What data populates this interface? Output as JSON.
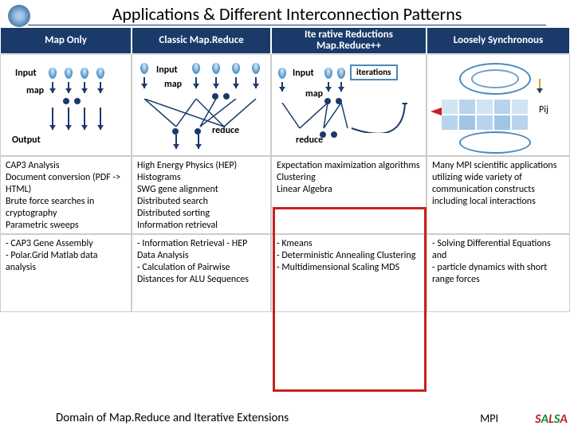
{
  "title": "Applications & Different Interconnection Patterns",
  "columns": [
    {
      "header": "Map Only"
    },
    {
      "header": "Classic Map.Reduce"
    },
    {
      "header": "Ite rative Reductions Map.Reduce++"
    },
    {
      "header": "Loosely Synchronous"
    }
  ],
  "diagrams": {
    "col0": {
      "input": "Input",
      "map": "map",
      "output": "Output"
    },
    "col1": {
      "input": "Input",
      "map": "map",
      "reduce": "reduce"
    },
    "col2": {
      "input": "Input",
      "map": "map",
      "reduce": "reduce",
      "iterations": "iterations"
    },
    "col3": {
      "pij": "Pij"
    }
  },
  "row2": [
    "CAP3 Analysis\nDocument conversion (PDF -> HTML)\nBrute force searches in cryptography\nParametric sweeps",
    "High Energy Physics (HEP) Histograms\nSWG gene alignment\nDistributed search\nDistributed sorting\nInformation retrieval",
    "Expectation maximization algorithms\nClustering\nLinear Algebra",
    "Many MPI scientific applications utilizing wide variety of communication constructs including local interactions"
  ],
  "row3": [
    "- CAP3 Gene Assembly\n- Polar.Grid Matlab data analysis",
    "- Information Retrieval - HEP Data Analysis\n- Calculation of Pairwise Distances for ALU Sequences",
    "- Kmeans\n- Deterministic Annealing Clustering\n- Multidimensional Scaling MDS",
    "- Solving Differential Equations and\n- particle dynamics with short range forces"
  ],
  "footer": {
    "domain": "Domain of Map.Reduce and Iterative Extensions",
    "mpi": "MPI",
    "salsa": "SALSA",
    "salsa_colors": [
      "#c82020",
      "#1a8a3a",
      "#c82020",
      "#1a8a3a",
      "#c82020"
    ]
  },
  "colors": {
    "header_bg": "#1a3a6a",
    "red": "#c82020",
    "drop": "#5a9aca",
    "arrow": "#1a3a6a",
    "grid_cells": [
      "#d0e4f4",
      "#b8d4ec",
      "#a0c4e4"
    ]
  }
}
